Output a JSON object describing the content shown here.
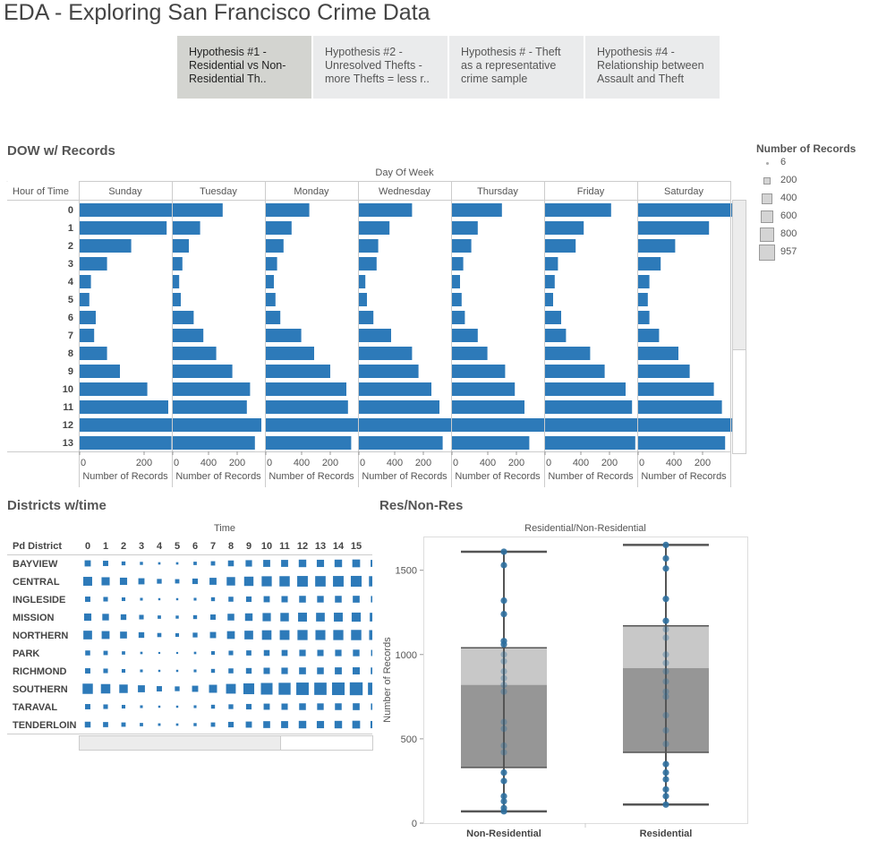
{
  "page": {
    "title": "EDA - Exploring San Francisco Crime Data"
  },
  "tabs": [
    {
      "label": "Hypothesis #1 - Residential vs Non-Residential Th..",
      "active": true
    },
    {
      "label": "Hypothesis #2 - Unresolved Thefts - more Thefts = less r..",
      "active": false
    },
    {
      "label": "Hypothesis # - Theft as a representative crime sample",
      "active": false
    },
    {
      "label": "Hypothesis #4 - Relationship between Assault and Theft",
      "active": false
    }
  ],
  "sections": {
    "dow": "DOW w/ Records",
    "districts": "Districts w/time",
    "resnonres": "Res/Non-Res"
  },
  "legend": {
    "title": "Number of Records",
    "items": [
      {
        "label": "6",
        "value": 6
      },
      {
        "label": "200",
        "value": 200
      },
      {
        "label": "400",
        "value": 400
      },
      {
        "label": "600",
        "value": 600
      },
      {
        "label": "800",
        "value": 800
      },
      {
        "label": "957",
        "value": 957
      }
    ]
  },
  "colors": {
    "bar": "#2d7ab9",
    "box_upper": "#c8c8c8",
    "box_lower": "#969696",
    "whisker": "#555555",
    "point": "#2e6f9e"
  },
  "chart_data": [
    {
      "type": "bar",
      "id": "dow",
      "title": "Day Of Week",
      "row_header": "Hour of Time",
      "xlabel": "Number of Records",
      "xticks": [
        "0",
        "200",
        "400"
      ],
      "xlim": [
        0,
        500
      ],
      "rows": [
        "0",
        "1",
        "2",
        "3",
        "4",
        "5",
        "6",
        "7",
        "8",
        "9",
        "10",
        "11",
        "12",
        "13"
      ],
      "series": [
        {
          "name": "Sunday",
          "values": [
            335,
            270,
            160,
            85,
            35,
            30,
            50,
            45,
            85,
            125,
            210,
            275,
            310,
            285
          ]
        },
        {
          "name": "Tuesday",
          "values": [
            155,
            85,
            50,
            30,
            20,
            25,
            65,
            95,
            135,
            185,
            240,
            230,
            275,
            255
          ]
        },
        {
          "name": "Monday",
          "values": [
            135,
            80,
            55,
            35,
            25,
            30,
            45,
            110,
            150,
            200,
            250,
            255,
            300,
            265
          ]
        },
        {
          "name": "Wednesday",
          "values": [
            165,
            95,
            60,
            55,
            20,
            25,
            45,
            100,
            165,
            185,
            225,
            250,
            295,
            260
          ]
        },
        {
          "name": "Thursday",
          "values": [
            155,
            80,
            60,
            35,
            25,
            30,
            40,
            80,
            110,
            165,
            195,
            225,
            300,
            240
          ]
        },
        {
          "name": "Friday",
          "values": [
            205,
            120,
            95,
            40,
            30,
            25,
            50,
            65,
            140,
            185,
            250,
            270,
            290,
            280
          ]
        },
        {
          "name": "Saturday",
          "values": [
            320,
            220,
            115,
            70,
            35,
            30,
            35,
            65,
            125,
            160,
            235,
            260,
            310,
            270
          ]
        }
      ]
    },
    {
      "type": "heatmap",
      "id": "districts",
      "title": "Time",
      "row_header": "Pd District",
      "columns": [
        "0",
        "1",
        "2",
        "3",
        "4",
        "5",
        "6",
        "7",
        "8",
        "9",
        "10",
        "11",
        "12",
        "13",
        "14",
        "15",
        "1"
      ],
      "rows": [
        "BAYVIEW",
        "CENTRAL",
        "INGLESIDE",
        "MISSION",
        "NORTHERN",
        "PARK",
        "RICHMOND",
        "SOUTHERN",
        "TARAVAL",
        "TENDERLOIN"
      ],
      "values": [
        [
          200,
          150,
          80,
          50,
          30,
          30,
          60,
          100,
          180,
          220,
          260,
          260,
          300,
          280,
          300,
          320,
          260
        ],
        [
          420,
          350,
          280,
          200,
          120,
          100,
          160,
          260,
          380,
          460,
          540,
          560,
          600,
          580,
          600,
          620,
          560
        ],
        [
          150,
          110,
          70,
          40,
          25,
          25,
          40,
          80,
          130,
          160,
          200,
          210,
          240,
          230,
          240,
          250,
          220
        ],
        [
          280,
          230,
          170,
          110,
          60,
          50,
          80,
          150,
          240,
          300,
          360,
          380,
          420,
          400,
          420,
          440,
          400
        ],
        [
          400,
          330,
          250,
          170,
          90,
          70,
          120,
          200,
          320,
          400,
          480,
          500,
          540,
          520,
          540,
          560,
          520
        ],
        [
          130,
          100,
          60,
          30,
          20,
          20,
          30,
          70,
          110,
          140,
          180,
          190,
          220,
          210,
          220,
          230,
          200
        ],
        [
          150,
          110,
          70,
          40,
          25,
          25,
          40,
          80,
          130,
          170,
          210,
          220,
          250,
          240,
          260,
          270,
          240
        ],
        [
          560,
          470,
          380,
          260,
          150,
          120,
          200,
          340,
          500,
          620,
          720,
          760,
          820,
          800,
          840,
          880,
          800
        ],
        [
          150,
          110,
          70,
          40,
          25,
          25,
          40,
          80,
          120,
          160,
          200,
          210,
          240,
          230,
          240,
          250,
          220
        ],
        [
          180,
          140,
          100,
          60,
          35,
          30,
          50,
          100,
          160,
          200,
          250,
          260,
          300,
          280,
          300,
          320,
          280
        ]
      ]
    },
    {
      "type": "box",
      "id": "resnonres",
      "title": "Residential/Non-Residential",
      "ylabel": "Number of Records",
      "ylim": [
        0,
        1700
      ],
      "yticks": [
        0,
        500,
        1000,
        1500
      ],
      "categories": [
        "Non-Residential",
        "Residential"
      ],
      "boxes": [
        {
          "name": "Non-Residential",
          "whisker_low": 70,
          "q1": 330,
          "median": 820,
          "q3": 1040,
          "whisker_high": 1610,
          "points": [
            70,
            90,
            130,
            160,
            250,
            300,
            420,
            460,
            560,
            600,
            780,
            820,
            860,
            900,
            960,
            1000,
            1060,
            1080,
            1240,
            1320,
            1530,
            1610
          ]
        },
        {
          "name": "Residential",
          "whisker_low": 110,
          "q1": 420,
          "median": 920,
          "q3": 1170,
          "whisker_high": 1650,
          "points": [
            110,
            160,
            200,
            260,
            300,
            350,
            470,
            550,
            640,
            750,
            780,
            840,
            900,
            950,
            1000,
            1100,
            1150,
            1200,
            1330,
            1510,
            1570,
            1650
          ]
        }
      ]
    }
  ]
}
